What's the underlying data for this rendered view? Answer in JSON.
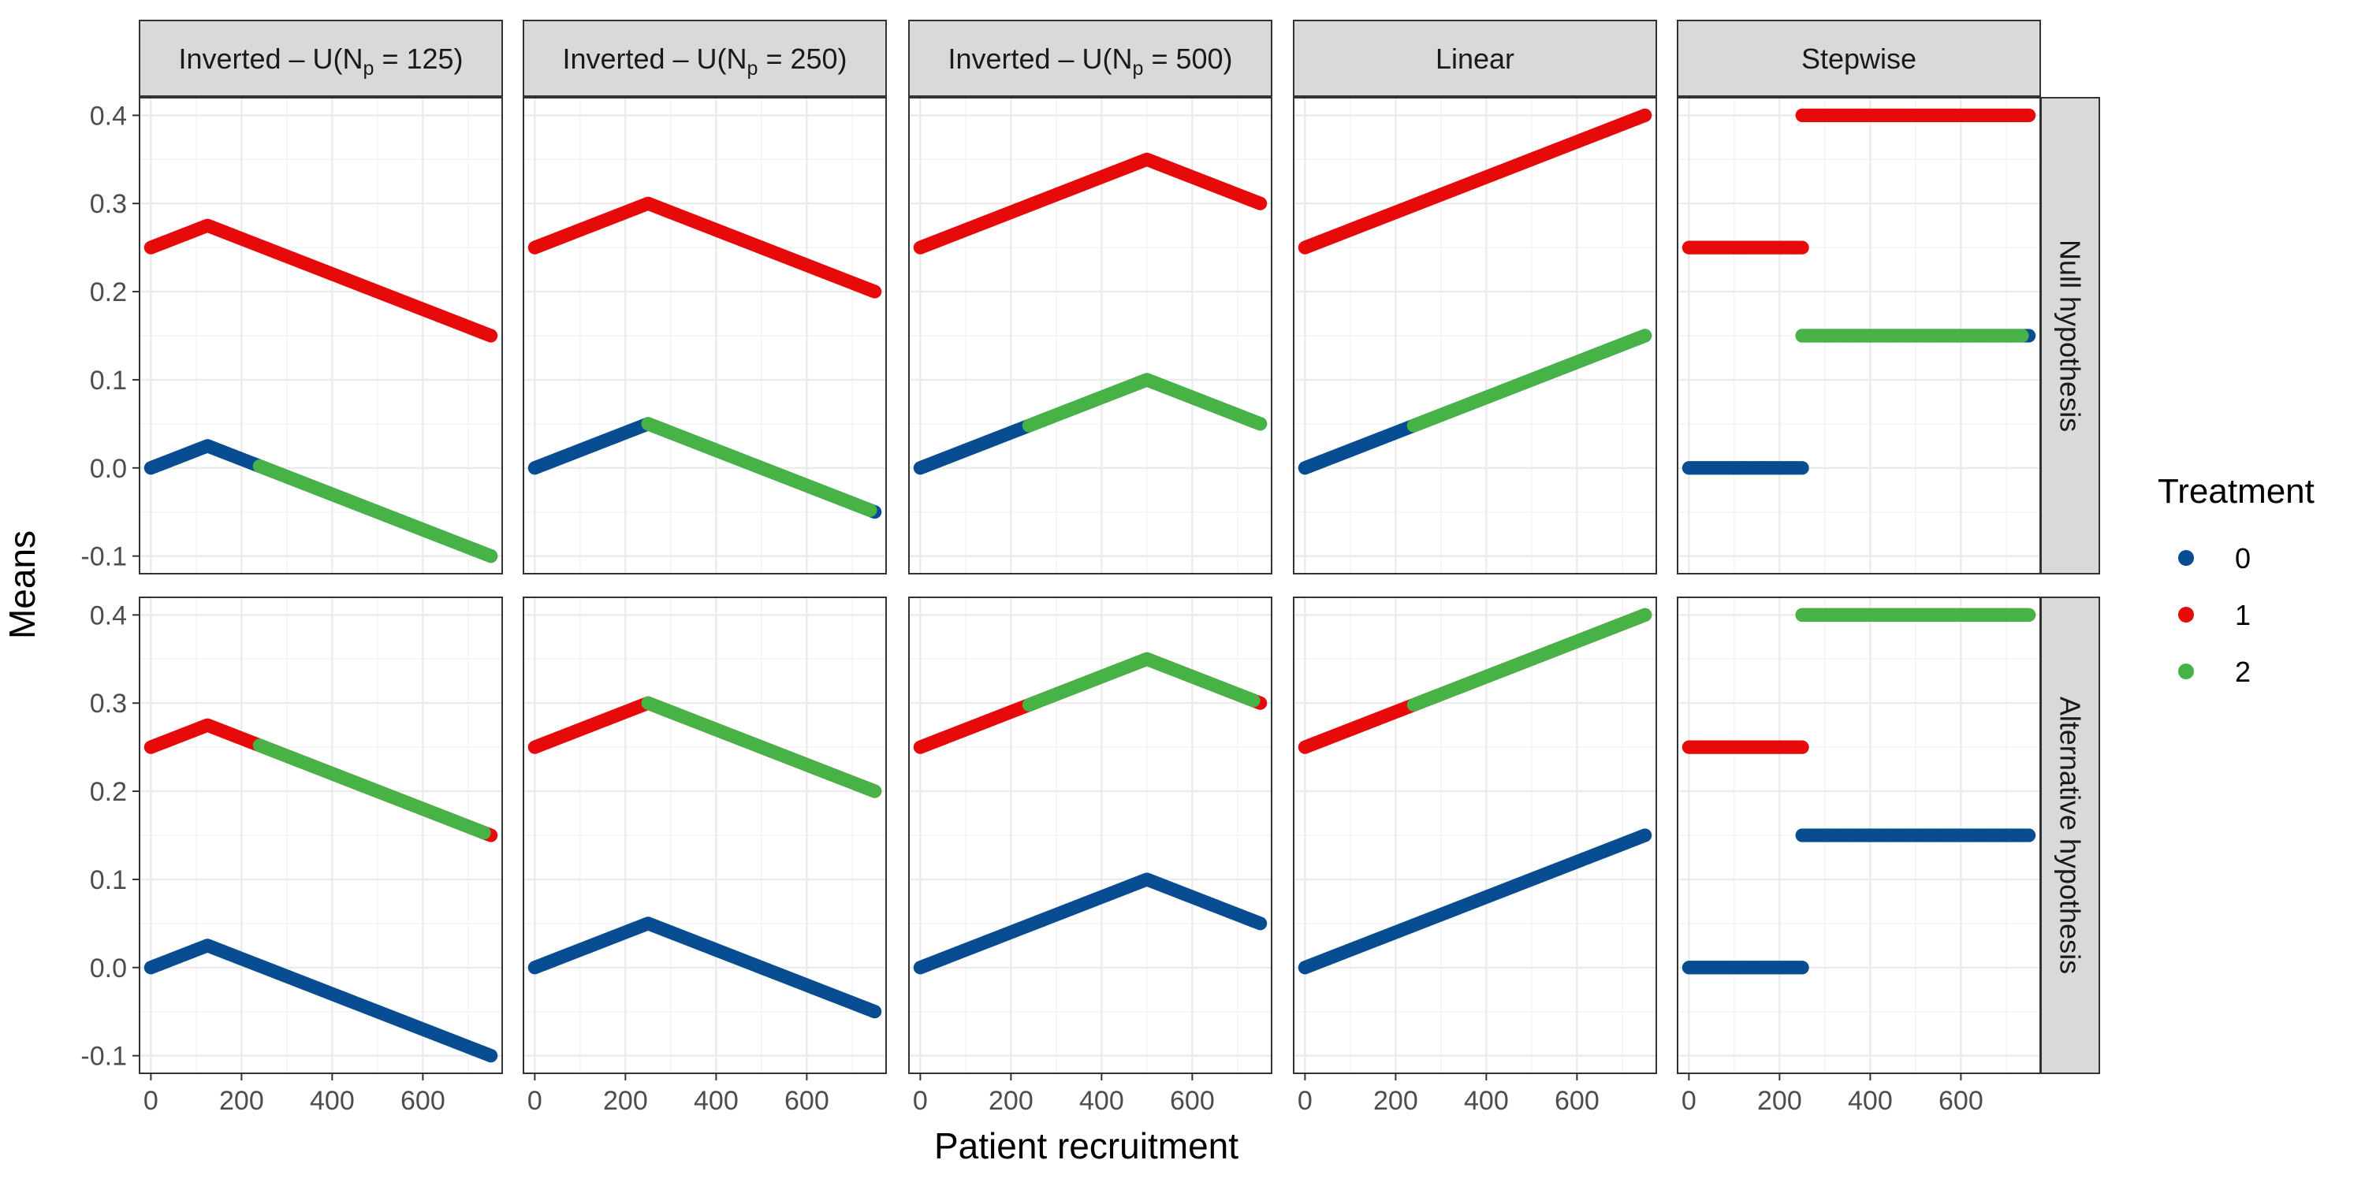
{
  "chart_data": {
    "type": "scatter",
    "x_label": "Patient recruitment",
    "y_label": "Means",
    "x_ticks": [
      0,
      200,
      400,
      600
    ],
    "y_ticks": [
      -0.1,
      0.0,
      0.1,
      0.2,
      0.3,
      0.4
    ],
    "y_tick_labels": [
      "-0.1",
      "0.0",
      "0.1",
      "0.2",
      "0.3",
      "0.4"
    ],
    "xlim": [
      -25,
      775
    ],
    "ylim": [
      -0.12,
      0.42
    ],
    "grid": true,
    "legend": {
      "title": "Treatment",
      "position": "right",
      "entries": [
        {
          "label": "0",
          "color": "#084d91"
        },
        {
          "label": "1",
          "color": "#e60a0a"
        },
        {
          "label": "2",
          "color": "#47b347"
        }
      ]
    },
    "columns": [
      {
        "prefix": "Inverted – U(N",
        "sub": "p",
        "suffix": " = 125)"
      },
      {
        "prefix": "Inverted – U(N",
        "sub": "p",
        "suffix": " = 250)"
      },
      {
        "prefix": "Inverted – U(N",
        "sub": "p",
        "suffix": " = 500)"
      },
      {
        "prefix": "Linear",
        "sub": "",
        "suffix": ""
      },
      {
        "prefix": "Stepwise",
        "sub": "",
        "suffix": ""
      }
    ],
    "rows": [
      "Null hypothesis",
      "Alternative hypothesis"
    ],
    "panels": [
      {
        "row": 0,
        "col": 0,
        "series": [
          {
            "treatment": "1",
            "segments": [
              {
                "x": [
                  0,
                  125,
                  750
                ],
                "y": [
                  0.25,
                  0.275,
                  0.15
                ]
              }
            ]
          },
          {
            "treatment": "0",
            "segments": [
              {
                "x": [
                  0,
                  125,
                  750
                ],
                "y": [
                  0.0,
                  0.025,
                  -0.1
                ]
              }
            ]
          },
          {
            "treatment": "2",
            "segments": [
              {
                "x": [
                  240,
                  750
                ],
                "y": [
                  0.002,
                  -0.1
                ]
              }
            ]
          }
        ]
      },
      {
        "row": 0,
        "col": 1,
        "series": [
          {
            "treatment": "1",
            "segments": [
              {
                "x": [
                  0,
                  250,
                  750
                ],
                "y": [
                  0.25,
                  0.3,
                  0.2
                ]
              }
            ]
          },
          {
            "treatment": "0",
            "segments": [
              {
                "x": [
                  0,
                  250,
                  750
                ],
                "y": [
                  0.0,
                  0.05,
                  -0.05
                ]
              }
            ]
          },
          {
            "treatment": "2",
            "segments": [
              {
                "x": [
                  250,
                  740
                ],
                "y": [
                  0.05,
                  -0.048
                ]
              }
            ]
          }
        ]
      },
      {
        "row": 0,
        "col": 2,
        "series": [
          {
            "treatment": "1",
            "segments": [
              {
                "x": [
                  0,
                  500,
                  750
                ],
                "y": [
                  0.25,
                  0.35,
                  0.3
                ]
              }
            ]
          },
          {
            "treatment": "0",
            "segments": [
              {
                "x": [
                  0,
                  500,
                  750
                ],
                "y": [
                  0.0,
                  0.1,
                  0.05
                ]
              }
            ]
          },
          {
            "treatment": "2",
            "segments": [
              {
                "x": [
                  240,
                  500,
                  750
                ],
                "y": [
                  0.048,
                  0.1,
                  0.05
                ]
              }
            ]
          }
        ]
      },
      {
        "row": 0,
        "col": 3,
        "series": [
          {
            "treatment": "1",
            "segments": [
              {
                "x": [
                  0,
                  750
                ],
                "y": [
                  0.25,
                  0.4
                ]
              }
            ]
          },
          {
            "treatment": "0",
            "segments": [
              {
                "x": [
                  0,
                  750
                ],
                "y": [
                  0.0,
                  0.15
                ]
              }
            ]
          },
          {
            "treatment": "2",
            "segments": [
              {
                "x": [
                  240,
                  750
                ],
                "y": [
                  0.048,
                  0.15
                ]
              }
            ]
          }
        ]
      },
      {
        "row": 0,
        "col": 4,
        "series": [
          {
            "treatment": "1",
            "segments": [
              {
                "x": [
                  0,
                  250
                ],
                "y": [
                  0.25,
                  0.25
                ]
              },
              {
                "x": [
                  250,
                  750
                ],
                "y": [
                  0.4,
                  0.4
                ]
              }
            ]
          },
          {
            "treatment": "0",
            "segments": [
              {
                "x": [
                  0,
                  250
                ],
                "y": [
                  0.0,
                  0.0
                ]
              },
              {
                "x": [
                  250,
                  750
                ],
                "y": [
                  0.15,
                  0.15
                ]
              }
            ]
          },
          {
            "treatment": "2",
            "segments": [
              {
                "x": [
                  250,
                  735
                ],
                "y": [
                  0.15,
                  0.15
                ]
              }
            ]
          }
        ]
      },
      {
        "row": 1,
        "col": 0,
        "series": [
          {
            "treatment": "0",
            "segments": [
              {
                "x": [
                  0,
                  125,
                  750
                ],
                "y": [
                  0.0,
                  0.025,
                  -0.1
                ]
              }
            ]
          },
          {
            "treatment": "1",
            "segments": [
              {
                "x": [
                  0,
                  125,
                  750
                ],
                "y": [
                  0.25,
                  0.275,
                  0.15
                ]
              }
            ]
          },
          {
            "treatment": "2",
            "segments": [
              {
                "x": [
                  240,
                  735
                ],
                "y": [
                  0.252,
                  0.153
                ]
              }
            ]
          }
        ]
      },
      {
        "row": 1,
        "col": 1,
        "series": [
          {
            "treatment": "0",
            "segments": [
              {
                "x": [
                  0,
                  250,
                  750
                ],
                "y": [
                  0.0,
                  0.05,
                  -0.05
                ]
              }
            ]
          },
          {
            "treatment": "1",
            "segments": [
              {
                "x": [
                  0,
                  250,
                  750
                ],
                "y": [
                  0.25,
                  0.3,
                  0.2
                ]
              }
            ]
          },
          {
            "treatment": "2",
            "segments": [
              {
                "x": [
                  250,
                  750
                ],
                "y": [
                  0.3,
                  0.2
                ]
              }
            ]
          }
        ]
      },
      {
        "row": 1,
        "col": 2,
        "series": [
          {
            "treatment": "0",
            "segments": [
              {
                "x": [
                  0,
                  500,
                  750
                ],
                "y": [
                  0.0,
                  0.1,
                  0.05
                ]
              }
            ]
          },
          {
            "treatment": "1",
            "segments": [
              {
                "x": [
                  0,
                  500,
                  750
                ],
                "y": [
                  0.25,
                  0.35,
                  0.3
                ]
              }
            ]
          },
          {
            "treatment": "2",
            "segments": [
              {
                "x": [
                  240,
                  500,
                  735
                ],
                "y": [
                  0.298,
                  0.35,
                  0.303
                ]
              }
            ]
          }
        ]
      },
      {
        "row": 1,
        "col": 3,
        "series": [
          {
            "treatment": "0",
            "segments": [
              {
                "x": [
                  0,
                  750
                ],
                "y": [
                  0.0,
                  0.15
                ]
              }
            ]
          },
          {
            "treatment": "1",
            "segments": [
              {
                "x": [
                  0,
                  750
                ],
                "y": [
                  0.25,
                  0.4
                ]
              }
            ]
          },
          {
            "treatment": "2",
            "segments": [
              {
                "x": [
                  240,
                  750
                ],
                "y": [
                  0.298,
                  0.4
                ]
              }
            ]
          }
        ]
      },
      {
        "row": 1,
        "col": 4,
        "series": [
          {
            "treatment": "0",
            "segments": [
              {
                "x": [
                  0,
                  250
                ],
                "y": [
                  0.0,
                  0.0
                ]
              },
              {
                "x": [
                  250,
                  750
                ],
                "y": [
                  0.15,
                  0.15
                ]
              }
            ]
          },
          {
            "treatment": "1",
            "segments": [
              {
                "x": [
                  0,
                  250
                ],
                "y": [
                  0.25,
                  0.25
                ]
              },
              {
                "x": [
                  250,
                  750
                ],
                "y": [
                  0.4,
                  0.4
                ]
              }
            ]
          },
          {
            "treatment": "2",
            "segments": [
              {
                "x": [
                  250,
                  750
                ],
                "y": [
                  0.4,
                  0.4
                ]
              }
            ]
          }
        ]
      }
    ]
  }
}
